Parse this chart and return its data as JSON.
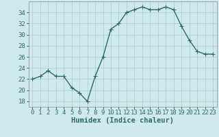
{
  "x": [
    0,
    1,
    2,
    3,
    4,
    5,
    6,
    7,
    8,
    9,
    10,
    11,
    12,
    13,
    14,
    15,
    16,
    17,
    18,
    19,
    20,
    21,
    22,
    23
  ],
  "y": [
    22,
    22.5,
    23.5,
    22.5,
    22.5,
    20.5,
    19.5,
    18,
    22.5,
    26,
    31,
    32,
    34,
    34.5,
    35,
    34.5,
    34.5,
    35,
    34.5,
    31.5,
    29,
    27,
    26.5,
    26.5
  ],
  "line_color": "#2d6b5e",
  "marker": "+",
  "marker_size": 4,
  "bg_color": "#ceeaea",
  "grid_color": "#aacccc",
  "xlabel": "Humidex (Indice chaleur)",
  "xlim": [
    -0.5,
    23.5
  ],
  "ylim": [
    17,
    36
  ],
  "yticks": [
    18,
    20,
    22,
    24,
    26,
    28,
    30,
    32,
    34
  ],
  "xticks": [
    0,
    1,
    2,
    3,
    4,
    5,
    6,
    7,
    8,
    9,
    10,
    11,
    12,
    13,
    14,
    15,
    16,
    17,
    18,
    19,
    20,
    21,
    22,
    23
  ],
  "xlabel_fontsize": 7.5,
  "tick_fontsize": 6.5,
  "line_width": 1.0,
  "line_color_hex": "#2d6b5e"
}
